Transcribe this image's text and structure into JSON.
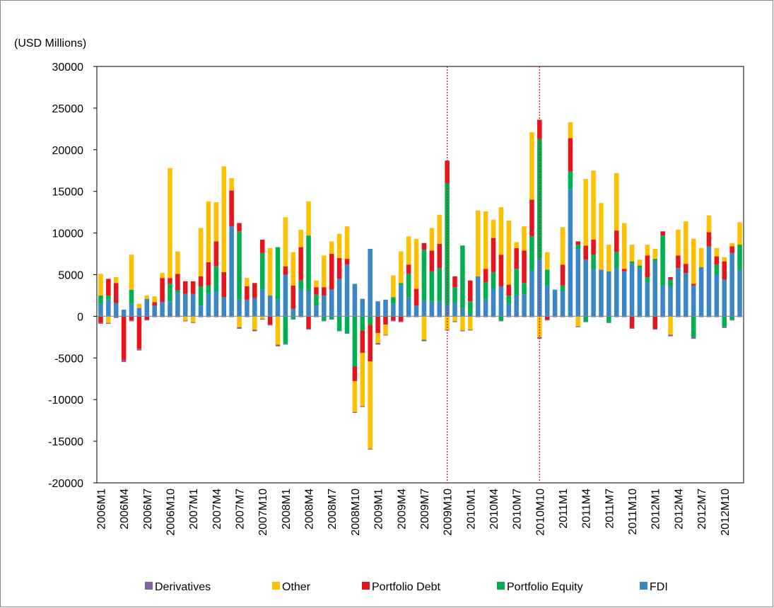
{
  "chart_data": {
    "type": "stacked_bar",
    "y_label": "(USD Millions)",
    "categories": [
      "2006M1",
      null,
      null,
      "2006M4",
      null,
      null,
      "2006M7",
      null,
      null,
      "2006M10",
      null,
      null,
      "2007M1",
      null,
      null,
      "2007M4",
      null,
      null,
      "2007M7",
      null,
      null,
      "2007M10",
      null,
      null,
      "2008M1",
      null,
      null,
      "2008M4",
      null,
      null,
      "2008M7",
      null,
      null,
      "2008M10",
      null,
      null,
      "2009M1",
      null,
      null,
      "2009M4",
      null,
      null,
      "2009M7",
      null,
      null,
      "2009M10",
      null,
      null,
      "2010M1",
      null,
      null,
      "2010M4",
      null,
      null,
      "2010M7",
      null,
      null,
      "2010M10",
      null,
      null,
      "2011M1",
      null,
      null,
      "2011M4",
      null,
      null,
      "2011M7",
      null,
      null,
      "2011M10",
      null,
      null,
      "2012M1",
      null,
      null,
      "2012M4",
      null,
      null,
      "2012M7",
      null,
      null,
      "2012M10",
      null,
      null
    ],
    "series": [
      {
        "name": "Derivatives",
        "color": "#8064a2",
        "values": [
          -100,
          -100,
          -200,
          -200,
          -100,
          -200,
          -100,
          -100,
          -100,
          -100,
          -100,
          -100,
          -100,
          -100,
          -100,
          -100,
          -100,
          -100,
          -200,
          -100,
          -200,
          -100,
          -100,
          -200,
          -100,
          -100,
          -100,
          -100,
          -100,
          -100,
          -100,
          -100,
          -100,
          -100,
          -100,
          -100,
          -200,
          -100,
          -100,
          -100,
          -100,
          -100,
          -200,
          -100,
          -100,
          -100,
          -100,
          -100,
          -100,
          -100,
          -100,
          -100,
          -100,
          -100,
          -100,
          -100,
          -100,
          -200,
          -100,
          -100,
          -100,
          -100,
          -100,
          -100,
          -100,
          -100,
          -100,
          -100,
          -100,
          -100,
          -100,
          -100,
          -100,
          -100,
          -200,
          -100,
          -100,
          -200,
          -100,
          -100,
          -100,
          -100,
          -100,
          -100
        ]
      },
      {
        "name": "Other",
        "color": "#ffc000",
        "values": [
          2600,
          -800,
          700,
          0,
          4200,
          500,
          400,
          700,
          600,
          13200,
          2700,
          -500,
          -700,
          5800,
          7300,
          4700,
          12700,
          1500,
          -1300,
          1000,
          -1600,
          -300,
          5700,
          -3400,
          5900,
          4000,
          2100,
          4100,
          800,
          3800,
          1500,
          2900,
          3900,
          -3700,
          -6400,
          -10500,
          -1200,
          -1200,
          2600,
          3800,
          3400,
          6000,
          -2800,
          2700,
          3500,
          -1600,
          -600,
          -1700,
          -1600,
          7900,
          6900,
          2200,
          5700,
          7700,
          700,
          2900,
          8100,
          -2500,
          2100,
          0,
          4500,
          1900,
          -1200,
          8000,
          8300,
          8000,
          3200,
          6900,
          5500,
          2000,
          700,
          1300,
          1200,
          0,
          -2200,
          3100,
          5100,
          5400,
          2300,
          2000,
          1000,
          500,
          400,
          2700
        ]
      },
      {
        "name": "Portfolio Debt",
        "color": "#e8141c",
        "values": [
          -800,
          2000,
          2400,
          -5300,
          -500,
          -3900,
          -400,
          400,
          2900,
          700,
          2000,
          1500,
          1500,
          1200,
          2800,
          3000,
          3000,
          4300,
          1000,
          1600,
          1800,
          1600,
          -1000,
          0,
          1000,
          2800,
          4000,
          -1500,
          900,
          1000,
          4300,
          2500,
          700,
          -1800,
          -2700,
          -4400,
          -2000,
          -1000,
          -500,
          -600,
          1100,
          2000,
          800,
          2500,
          2900,
          2700,
          1300,
          0,
          2500,
          0,
          1600,
          4100,
          3800,
          1300,
          2500,
          3900,
          4400,
          2300,
          -400,
          0,
          2500,
          4000,
          400,
          1700,
          1800,
          0,
          0,
          2600,
          300,
          -1400,
          0,
          2600,
          -1500,
          500,
          300,
          1500,
          1100,
          200,
          0,
          1700,
          1000,
          2200,
          800,
          0
        ]
      },
      {
        "name": "Portfolio Equity",
        "color": "#00b050",
        "values": [
          1000,
          500,
          0,
          0,
          1700,
          0,
          0,
          0,
          0,
          2100,
          300,
          0,
          0,
          2300,
          1000,
          3000,
          0,
          0,
          8200,
          0,
          0,
          4400,
          0,
          6300,
          -3300,
          -300,
          1100,
          6700,
          1300,
          -500,
          -300,
          -1700,
          -2000,
          -6000,
          -1700,
          -1000,
          0,
          0,
          800,
          300,
          2800,
          0,
          6100,
          3600,
          4000,
          14600,
          1900,
          7500,
          1500,
          0,
          2100,
          2000,
          -500,
          1000,
          3200,
          1400,
          4100,
          14400,
          1900,
          0,
          700,
          2100,
          500,
          -600,
          1800,
          0,
          -700,
          1900,
          0,
          300,
          300,
          600,
          300,
          6000,
          800,
          0,
          0,
          -2500,
          0,
          0,
          1200,
          -1300,
          -400,
          3100
        ]
      },
      {
        "name": "FDI",
        "color": "#3a87c8",
        "values": [
          1500,
          2000,
          1600,
          800,
          1500,
          1000,
          2100,
          1300,
          1700,
          1800,
          2800,
          2700,
          2700,
          1300,
          2700,
          3000,
          2300,
          10800,
          2000,
          2000,
          2200,
          3200,
          2500,
          2000,
          5000,
          900,
          3200,
          3000,
          1300,
          2500,
          3200,
          4500,
          6200,
          3900,
          2100,
          8100,
          1800,
          2000,
          1500,
          3700,
          2300,
          1300,
          1900,
          1800,
          1800,
          1400,
          1600,
          1000,
          300,
          4800,
          2000,
          3300,
          3600,
          1500,
          2500,
          2600,
          5500,
          6900,
          3700,
          3200,
          3000,
          15300,
          8100,
          6800,
          5600,
          5600,
          5400,
          5800,
          5400,
          6300,
          5800,
          4100,
          6600,
          3700,
          3600,
          5800,
          5200,
          3700,
          5900,
          8400,
          5000,
          4400,
          7600,
          5500
        ]
      }
    ],
    "ylim": [
      -20000,
      30000
    ],
    "yticks": [
      -20000,
      -15000,
      -10000,
      -5000,
      0,
      5000,
      10000,
      15000,
      20000,
      25000,
      30000
    ],
    "vlines": [
      "2009M10",
      "2010M10"
    ],
    "legend": "bottom"
  }
}
